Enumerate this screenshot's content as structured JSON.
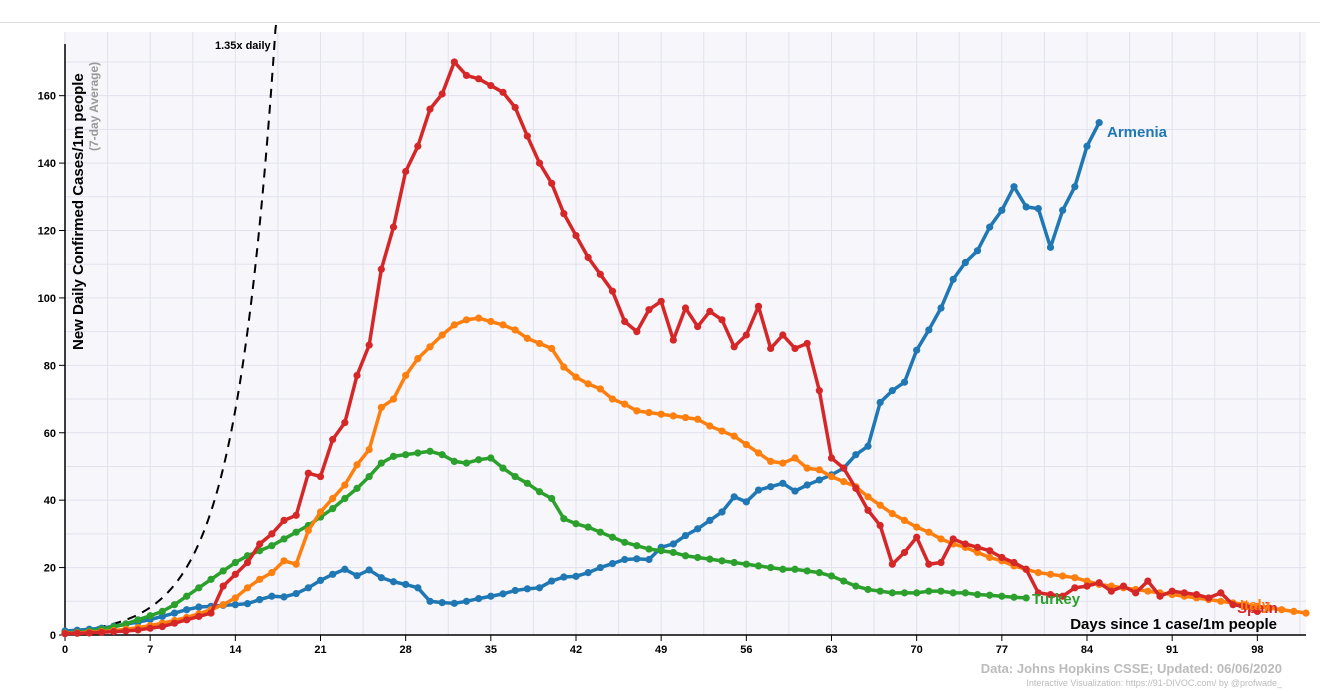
{
  "chart_data": {
    "type": "line",
    "ylabel": "New Daily Confirmed Cases/1m people",
    "ylabel_sub": "(7-day Average)",
    "xlabel": "Days since 1 case/1m people",
    "xlim": [
      0,
      102
    ],
    "ylim": [
      0,
      178
    ],
    "x_ticks": [
      0,
      7,
      14,
      21,
      28,
      35,
      42,
      49,
      56,
      63,
      70,
      77,
      84,
      91,
      98
    ],
    "y_ticks": [
      0,
      20,
      40,
      60,
      80,
      100,
      120,
      140,
      160
    ],
    "grid": true,
    "reference_line": {
      "label": "1.35x daily",
      "growth": 1.35,
      "start_value": 1,
      "style": "dashed",
      "color": "#000000"
    },
    "series": [
      {
        "name": "Armenia",
        "color": "#1f77b4",
        "values": [
          1.2,
          1.4,
          1.7,
          2.0,
          2.6,
          3.2,
          3.8,
          4.6,
          5.5,
          6.5,
          7.5,
          8.3,
          8.5,
          8.8,
          9.0,
          9.3,
          10.5,
          11.5,
          11.3,
          12.3,
          14.0,
          16.2,
          18.0,
          19.5,
          17.6,
          19.3,
          17.0,
          15.8,
          15.0,
          14.0,
          10.0,
          9.6,
          9.4,
          10.0,
          10.8,
          11.5,
          12.2,
          13.2,
          13.7,
          14.0,
          16.0,
          17.2,
          17.4,
          18.5,
          20.0,
          21.2,
          22.4,
          22.6,
          22.4,
          26.0,
          27.0,
          29.5,
          31.5,
          34.0,
          36.5,
          41.0,
          39.5,
          43.0,
          44.0,
          45.0,
          42.7,
          44.5,
          46.0,
          47.5,
          49.5,
          53.5,
          56.0,
          69.0,
          72.5,
          75.0,
          84.5,
          90.5,
          97.0,
          105.5,
          110.5,
          114.0,
          121.0,
          126.0,
          133.0,
          127.0,
          126.5,
          115.0,
          126.0,
          133.0,
          145.0,
          152.0
        ]
      },
      {
        "name": "Italy",
        "color": "#ff7f0e",
        "values": [
          0.5,
          0.6,
          0.8,
          1.0,
          1.3,
          1.7,
          2.2,
          2.8,
          3.5,
          4.3,
          5.2,
          6.3,
          7.5,
          9.0,
          11.0,
          14.0,
          16.5,
          18.5,
          22.0,
          21.0,
          31.0,
          36.5,
          40.5,
          44.5,
          50.5,
          55.0,
          67.5,
          70.0,
          77.0,
          82.0,
          85.5,
          89.0,
          92.0,
          93.5,
          94.0,
          93.0,
          92.0,
          90.5,
          88.0,
          86.5,
          85.0,
          79.5,
          76.5,
          74.5,
          73.0,
          70.0,
          68.5,
          66.5,
          66.0,
          65.5,
          65.0,
          64.5,
          64.0,
          62.0,
          60.5,
          59.0,
          56.5,
          54.0,
          51.5,
          51.0,
          52.5,
          49.5,
          49.0,
          47.0,
          45.5,
          44.0,
          41.0,
          38.5,
          36.0,
          34.0,
          32.0,
          30.5,
          28.5,
          27.0,
          26.0,
          24.5,
          23.0,
          22.0,
          20.5,
          19.5,
          18.5,
          18.0,
          17.5,
          17.0,
          16.0,
          15.0,
          14.5,
          14.0,
          13.5,
          13.0,
          12.5,
          12.0,
          11.5,
          11.0,
          10.5,
          10.0,
          9.5,
          9.0,
          8.5,
          8.0,
          7.5,
          7.0,
          6.5
        ]
      },
      {
        "name": "Spain",
        "color": "#d62728",
        "values": [
          0.4,
          0.5,
          0.6,
          0.8,
          1.0,
          1.2,
          1.5,
          2.0,
          2.5,
          3.5,
          4.5,
          5.5,
          6.5,
          14.5,
          18.0,
          21.5,
          27.0,
          30.0,
          34.0,
          35.5,
          48.0,
          47.0,
          58.0,
          63.0,
          77.0,
          86.0,
          108.5,
          121.0,
          137.5,
          145.0,
          156.0,
          160.5,
          170.0,
          166.0,
          165.0,
          163.0,
          161.0,
          156.5,
          148.0,
          140.0,
          134.0,
          125.0,
          118.5,
          112.0,
          107.0,
          102.0,
          93.0,
          90.0,
          96.5,
          99.0,
          87.5,
          97.0,
          91.5,
          96.0,
          93.5,
          85.5,
          89.0,
          97.5,
          85.0,
          89.0,
          85.0,
          86.5,
          72.5,
          52.5,
          49.5,
          43.5,
          37.0,
          32.5,
          21.0,
          24.5,
          29.0,
          21.0,
          21.5,
          28.5,
          27.0,
          26.0,
          25.0,
          23.0,
          21.5,
          19.5,
          12.5,
          12.0,
          11.5,
          14.0,
          14.5,
          15.5,
          13.0,
          14.5,
          12.5,
          16.0,
          11.5,
          13.0,
          12.5,
          12.0,
          11.0,
          12.5,
          9.0,
          8.5,
          7.0
        ]
      },
      {
        "name": "Turkey",
        "color": "#2ca02c",
        "values": [
          0.6,
          0.8,
          1.2,
          1.7,
          2.4,
          3.3,
          4.5,
          5.7,
          7.0,
          9.0,
          11.5,
          14.0,
          16.5,
          19.0,
          21.5,
          23.5,
          25.0,
          26.5,
          28.5,
          30.5,
          32.5,
          35.0,
          37.5,
          40.5,
          43.5,
          47.0,
          51.0,
          53.0,
          53.5,
          54.0,
          54.5,
          53.5,
          51.5,
          51.0,
          52.0,
          52.5,
          49.5,
          47.0,
          45.0,
          42.5,
          40.5,
          34.5,
          33.0,
          32.0,
          30.5,
          29.0,
          27.5,
          26.5,
          25.5,
          25.0,
          24.5,
          23.5,
          23.0,
          22.5,
          22.0,
          21.5,
          21.0,
          20.5,
          20.0,
          19.5,
          19.5,
          19.0,
          18.5,
          17.5,
          16.0,
          14.5,
          13.5,
          13.0,
          12.5,
          12.5,
          12.5,
          13.0,
          13.0,
          12.5,
          12.5,
          12.0,
          11.8,
          11.5,
          11.2,
          11.0
        ]
      }
    ]
  },
  "labels": {
    "armenia": "Armenia",
    "italy": "Italy",
    "spain": "Spain",
    "turkey": "Turkey",
    "ref": "1.35x daily",
    "source": "Data: Johns Hopkins CSSE; Updated: 06/06/2020",
    "credit": "Interactive Visualization: https://91-DIVOC.com/ by @profwade_"
  }
}
